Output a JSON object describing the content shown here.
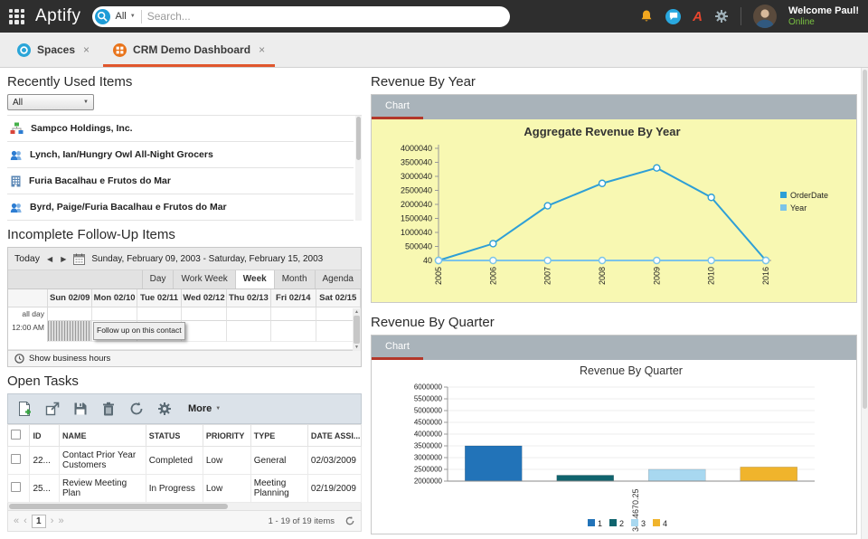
{
  "topbar": {
    "logo": "Aptify",
    "search": {
      "filter_label": "All",
      "placeholder": "Search..."
    },
    "user": {
      "welcome": "Welcome Paul!",
      "status": "Online"
    }
  },
  "tabs": {
    "spaces": "Spaces",
    "crm": "CRM Demo Dashboard",
    "close": "×"
  },
  "icons": {
    "caret_down": "▼",
    "arrow_left": "◀",
    "arrow_right": "▶",
    "first": "«",
    "prev": "‹",
    "next": "›",
    "last": "»",
    "up": "▲",
    "down": "▼"
  },
  "recently_used": {
    "title": "Recently Used Items",
    "filter_value": "All",
    "items": [
      {
        "label": "Sampco Holdings, Inc.",
        "icon": "org-chart-icon"
      },
      {
        "label": "Lynch, Ian/Hungry Owl All-Night Grocers",
        "icon": "people-icon"
      },
      {
        "label": "Furia Bacalhau e Frutos do Mar",
        "icon": "company-icon"
      },
      {
        "label": "Byrd, Paige/Furia Bacalhau e Frutos do Mar",
        "icon": "people-icon"
      }
    ]
  },
  "followup": {
    "title": "Incomplete Follow-Up Items",
    "today": "Today",
    "date_range": "Sunday, February 09, 2003 - Saturday, February 15, 2003",
    "views": [
      "Day",
      "Work Week",
      "Week",
      "Month",
      "Agenda"
    ],
    "active_view": "Week",
    "days": [
      "Sun 02/09",
      "Mon 02/10",
      "Tue 02/11",
      "Wed 02/12",
      "Thu 02/13",
      "Fri 02/14",
      "Sat 02/15"
    ],
    "all_day": "all day",
    "time": "12:00 AM",
    "event": "Follow up on this contact",
    "business_hours": "Show business hours"
  },
  "open_tasks": {
    "title": "Open Tasks",
    "more": "More",
    "columns": [
      "ID",
      "NAME",
      "STATUS",
      "PRIORITY",
      "TYPE",
      "DATE ASSI..."
    ],
    "rows": [
      {
        "id": "22...",
        "name": "Contact Prior Year Customers",
        "status": "Completed",
        "priority": "Low",
        "type": "General",
        "date": "02/03/2009"
      },
      {
        "id": "25...",
        "name": "Review Meeting Plan",
        "status": "In Progress",
        "priority": "Low",
        "type": "Meeting Planning",
        "date": "02/19/2009"
      }
    ],
    "page": "1",
    "summary": "1 - 19 of 19 items"
  },
  "panels": {
    "revenue_year": {
      "heading": "Revenue By Year",
      "tab": "Chart"
    },
    "revenue_quarter": {
      "heading": "Revenue By Quarter",
      "tab": "Chart"
    }
  },
  "chart_data": [
    {
      "id": "chart-year",
      "type": "line",
      "title": "Aggregate Revenue By Year",
      "x": [
        "2005",
        "2006",
        "2007",
        "2008",
        "2009",
        "2010",
        "2016"
      ],
      "series": [
        {
          "name": "OrderDate",
          "color": "#2e9fd6",
          "values": [
            40,
            600040,
            1950040,
            2750040,
            3300040,
            2250040,
            40
          ]
        },
        {
          "name": "Year",
          "color": "#7cc4e8",
          "values": [
            40,
            40,
            40,
            40,
            40,
            40,
            40
          ]
        }
      ],
      "ylim": [
        40,
        4000040
      ],
      "yticks": [
        40,
        500040,
        1000040,
        1500040,
        2000040,
        2500040,
        3000040,
        3500040,
        4000040
      ],
      "plot_bg": "#f8f8b2",
      "legend_position": "right"
    },
    {
      "id": "chart-quarter",
      "type": "bar",
      "title": "Revenue By Quarter",
      "categories": [
        "1",
        "2",
        "3",
        "4"
      ],
      "values": [
        3500000,
        2250000,
        2500000,
        2600000
      ],
      "colors": [
        "#2273b8",
        "#10646e",
        "#a8d8f0",
        "#f0b42c"
      ],
      "ylim": [
        2000000,
        6000000
      ],
      "yticks": [
        2000000,
        2500000,
        3000000,
        3500000,
        4000000,
        4500000,
        5000000,
        5500000,
        6000000
      ],
      "annotation": "3444670.25",
      "legend_position": "bottom"
    }
  ]
}
